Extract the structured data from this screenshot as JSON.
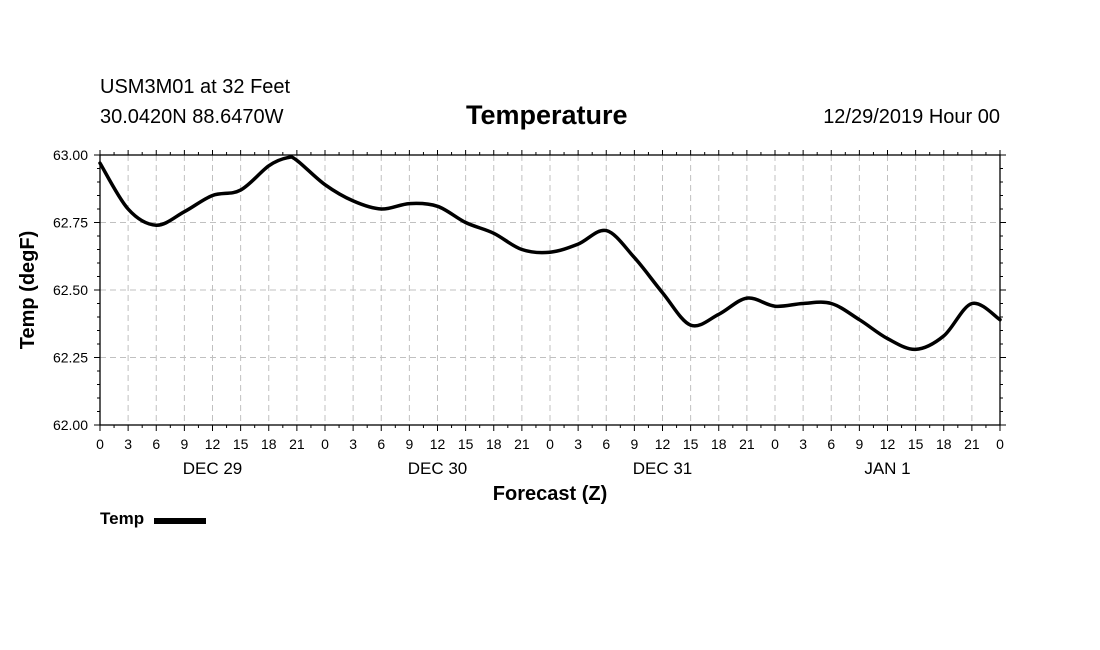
{
  "header": {
    "station": "USM3M01 at 32 Feet",
    "coords": "30.0420N 88.6470W",
    "title": "Temperature",
    "datetime": "12/29/2019 Hour 00"
  },
  "colors": {
    "line": "#000000",
    "grid": "#c0c0c0",
    "frame": "#000000"
  },
  "chart_data": {
    "type": "line",
    "title": "Temperature",
    "xlabel": "Forecast (Z)",
    "ylabel": "Temp (degF)",
    "xlim": [
      0,
      96
    ],
    "ylim": [
      62.0,
      63.0
    ],
    "y_ticks": [
      "62.00",
      "62.25",
      "62.50",
      "62.75",
      "63.00"
    ],
    "x_tick_labels": [
      "0",
      "3",
      "6",
      "9",
      "12",
      "15",
      "18",
      "21",
      "0",
      "3",
      "6",
      "9",
      "12",
      "15",
      "18",
      "21",
      "0",
      "3",
      "6",
      "9",
      "12",
      "15",
      "18",
      "21",
      "0",
      "3",
      "6",
      "9",
      "12",
      "15",
      "18",
      "21",
      "0"
    ],
    "day_labels": [
      {
        "label": "DEC 29",
        "hour": 12
      },
      {
        "label": "DEC 30",
        "hour": 36
      },
      {
        "label": "DEC 31",
        "hour": 60
      },
      {
        "label": "JAN 1",
        "hour": 84
      }
    ],
    "grid": true,
    "legend": {
      "position": "bottom-left",
      "entries": [
        "Temp"
      ]
    },
    "series": [
      {
        "name": "Temp",
        "x": [
          0,
          3,
          6,
          9,
          12,
          15,
          18,
          20,
          21,
          24,
          27,
          30,
          33,
          36,
          39,
          42,
          45,
          48,
          51,
          54,
          57,
          60,
          63,
          66,
          69,
          72,
          75,
          78,
          81,
          84,
          87,
          90,
          93,
          96
        ],
        "values": [
          62.97,
          62.8,
          62.74,
          62.79,
          62.85,
          62.87,
          62.96,
          62.99,
          62.98,
          62.89,
          62.83,
          62.8,
          62.82,
          62.81,
          62.75,
          62.71,
          62.65,
          62.64,
          62.67,
          62.72,
          62.62,
          62.49,
          62.37,
          62.41,
          62.47,
          62.44,
          62.45,
          62.45,
          62.39,
          62.32,
          62.28,
          62.33,
          62.45,
          62.39
        ]
      }
    ]
  },
  "legend": {
    "label": "Temp"
  }
}
